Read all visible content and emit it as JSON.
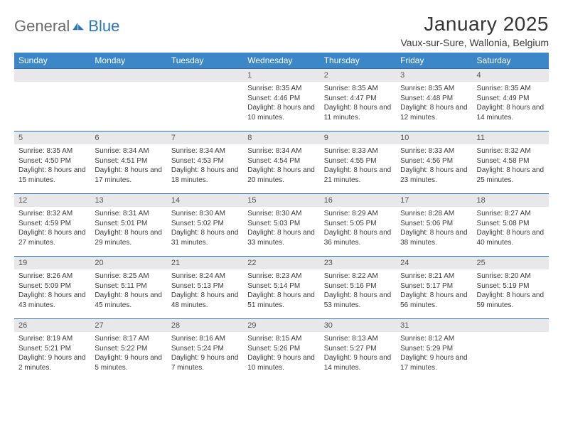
{
  "logo": {
    "general": "General",
    "blue": "Blue"
  },
  "title": "January 2025",
  "location": "Vaux-sur-Sure, Wallonia, Belgium",
  "dow": [
    "Sunday",
    "Monday",
    "Tuesday",
    "Wednesday",
    "Thursday",
    "Friday",
    "Saturday"
  ],
  "colors": {
    "header_bg": "#3b87c8",
    "header_text": "#ffffff",
    "daynum_bg": "#e8e8ea",
    "divider": "#2f6fa8",
    "body_text": "#3c3c3c"
  },
  "weeks": [
    [
      {
        "n": "",
        "lines": []
      },
      {
        "n": "",
        "lines": []
      },
      {
        "n": "",
        "lines": []
      },
      {
        "n": "1",
        "lines": [
          "Sunrise: 8:35 AM",
          "Sunset: 4:46 PM",
          "Daylight: 8 hours and 10 minutes."
        ]
      },
      {
        "n": "2",
        "lines": [
          "Sunrise: 8:35 AM",
          "Sunset: 4:47 PM",
          "Daylight: 8 hours and 11 minutes."
        ]
      },
      {
        "n": "3",
        "lines": [
          "Sunrise: 8:35 AM",
          "Sunset: 4:48 PM",
          "Daylight: 8 hours and 12 minutes."
        ]
      },
      {
        "n": "4",
        "lines": [
          "Sunrise: 8:35 AM",
          "Sunset: 4:49 PM",
          "Daylight: 8 hours and 14 minutes."
        ]
      }
    ],
    [
      {
        "n": "5",
        "lines": [
          "Sunrise: 8:35 AM",
          "Sunset: 4:50 PM",
          "Daylight: 8 hours and 15 minutes."
        ]
      },
      {
        "n": "6",
        "lines": [
          "Sunrise: 8:34 AM",
          "Sunset: 4:51 PM",
          "Daylight: 8 hours and 17 minutes."
        ]
      },
      {
        "n": "7",
        "lines": [
          "Sunrise: 8:34 AM",
          "Sunset: 4:53 PM",
          "Daylight: 8 hours and 18 minutes."
        ]
      },
      {
        "n": "8",
        "lines": [
          "Sunrise: 8:34 AM",
          "Sunset: 4:54 PM",
          "Daylight: 8 hours and 20 minutes."
        ]
      },
      {
        "n": "9",
        "lines": [
          "Sunrise: 8:33 AM",
          "Sunset: 4:55 PM",
          "Daylight: 8 hours and 21 minutes."
        ]
      },
      {
        "n": "10",
        "lines": [
          "Sunrise: 8:33 AM",
          "Sunset: 4:56 PM",
          "Daylight: 8 hours and 23 minutes."
        ]
      },
      {
        "n": "11",
        "lines": [
          "Sunrise: 8:32 AM",
          "Sunset: 4:58 PM",
          "Daylight: 8 hours and 25 minutes."
        ]
      }
    ],
    [
      {
        "n": "12",
        "lines": [
          "Sunrise: 8:32 AM",
          "Sunset: 4:59 PM",
          "Daylight: 8 hours and 27 minutes."
        ]
      },
      {
        "n": "13",
        "lines": [
          "Sunrise: 8:31 AM",
          "Sunset: 5:01 PM",
          "Daylight: 8 hours and 29 minutes."
        ]
      },
      {
        "n": "14",
        "lines": [
          "Sunrise: 8:30 AM",
          "Sunset: 5:02 PM",
          "Daylight: 8 hours and 31 minutes."
        ]
      },
      {
        "n": "15",
        "lines": [
          "Sunrise: 8:30 AM",
          "Sunset: 5:03 PM",
          "Daylight: 8 hours and 33 minutes."
        ]
      },
      {
        "n": "16",
        "lines": [
          "Sunrise: 8:29 AM",
          "Sunset: 5:05 PM",
          "Daylight: 8 hours and 36 minutes."
        ]
      },
      {
        "n": "17",
        "lines": [
          "Sunrise: 8:28 AM",
          "Sunset: 5:06 PM",
          "Daylight: 8 hours and 38 minutes."
        ]
      },
      {
        "n": "18",
        "lines": [
          "Sunrise: 8:27 AM",
          "Sunset: 5:08 PM",
          "Daylight: 8 hours and 40 minutes."
        ]
      }
    ],
    [
      {
        "n": "19",
        "lines": [
          "Sunrise: 8:26 AM",
          "Sunset: 5:09 PM",
          "Daylight: 8 hours and 43 minutes."
        ]
      },
      {
        "n": "20",
        "lines": [
          "Sunrise: 8:25 AM",
          "Sunset: 5:11 PM",
          "Daylight: 8 hours and 45 minutes."
        ]
      },
      {
        "n": "21",
        "lines": [
          "Sunrise: 8:24 AM",
          "Sunset: 5:13 PM",
          "Daylight: 8 hours and 48 minutes."
        ]
      },
      {
        "n": "22",
        "lines": [
          "Sunrise: 8:23 AM",
          "Sunset: 5:14 PM",
          "Daylight: 8 hours and 51 minutes."
        ]
      },
      {
        "n": "23",
        "lines": [
          "Sunrise: 8:22 AM",
          "Sunset: 5:16 PM",
          "Daylight: 8 hours and 53 minutes."
        ]
      },
      {
        "n": "24",
        "lines": [
          "Sunrise: 8:21 AM",
          "Sunset: 5:17 PM",
          "Daylight: 8 hours and 56 minutes."
        ]
      },
      {
        "n": "25",
        "lines": [
          "Sunrise: 8:20 AM",
          "Sunset: 5:19 PM",
          "Daylight: 8 hours and 59 minutes."
        ]
      }
    ],
    [
      {
        "n": "26",
        "lines": [
          "Sunrise: 8:19 AM",
          "Sunset: 5:21 PM",
          "Daylight: 9 hours and 2 minutes."
        ]
      },
      {
        "n": "27",
        "lines": [
          "Sunrise: 8:17 AM",
          "Sunset: 5:22 PM",
          "Daylight: 9 hours and 5 minutes."
        ]
      },
      {
        "n": "28",
        "lines": [
          "Sunrise: 8:16 AM",
          "Sunset: 5:24 PM",
          "Daylight: 9 hours and 7 minutes."
        ]
      },
      {
        "n": "29",
        "lines": [
          "Sunrise: 8:15 AM",
          "Sunset: 5:26 PM",
          "Daylight: 9 hours and 10 minutes."
        ]
      },
      {
        "n": "30",
        "lines": [
          "Sunrise: 8:13 AM",
          "Sunset: 5:27 PM",
          "Daylight: 9 hours and 14 minutes."
        ]
      },
      {
        "n": "31",
        "lines": [
          "Sunrise: 8:12 AM",
          "Sunset: 5:29 PM",
          "Daylight: 9 hours and 17 minutes."
        ]
      },
      {
        "n": "",
        "lines": []
      }
    ]
  ]
}
